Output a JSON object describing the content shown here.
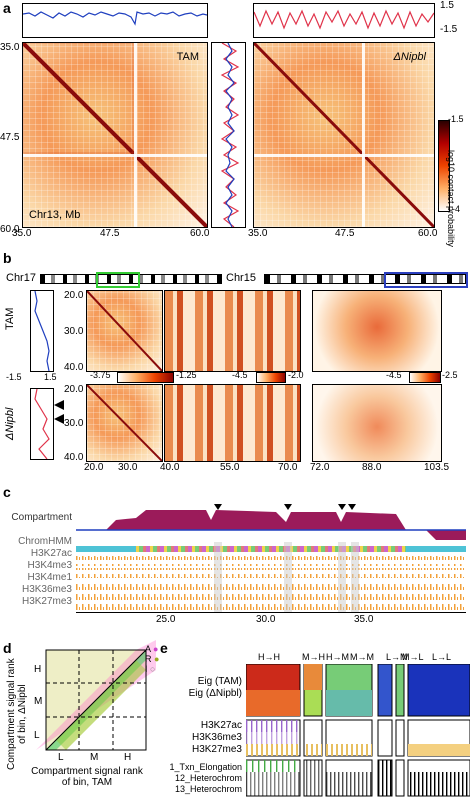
{
  "panel_a": {
    "letter": "a",
    "right_axis_ticks": [
      "1.5",
      "-1.5"
    ],
    "labels": {
      "tam": "TAM",
      "nipbl": "ΔNipbl",
      "chr": "Chr13, Mb"
    },
    "y_ticks": [
      "35.0",
      "47.5",
      "60.0"
    ],
    "x_ticks_left": [
      "35.0",
      "47.5",
      "60.0"
    ],
    "x_ticks_right": [
      "35.0",
      "47.5",
      "60.0"
    ],
    "colorbar": {
      "title": "log10 contact probability",
      "top": "-1.5",
      "bottom": "-4"
    },
    "colors": {
      "tam": "#1f3fbf",
      "nipbl": "#e0334a"
    }
  },
  "panel_b": {
    "letter": "b",
    "chr17": "Chr17",
    "chr15": "Chr15",
    "row_labels": {
      "tam": "TAM",
      "nipbl": "ΔNipbl"
    },
    "y_ticks": [
      "20.0",
      "30.0",
      "40.0"
    ],
    "y_ticks_bottom": [
      "20.0",
      "30.0",
      "40.0"
    ],
    "side_ticks": [
      "-1.5",
      "1.5"
    ],
    "x_ticks": [
      "20.0",
      "30.0",
      "40.0",
      "55.0",
      "70.0",
      "72.0",
      "88.0",
      "103.5"
    ],
    "cbar1": [
      "-3.75",
      "-1.25"
    ],
    "cbar2": [
      "-4.5",
      "-2.0"
    ],
    "cbar3": [
      "-4.5",
      "-2.5"
    ]
  },
  "panel_c": {
    "letter": "c",
    "tracks": [
      "Compartment",
      "ChromHMM",
      "H3K27ac",
      "H3K4me3",
      "H3K4me1",
      "H3K36me3",
      "H3K27me3"
    ],
    "x_ticks": [
      "25.0",
      "30.0",
      "35.0"
    ]
  },
  "panel_d": {
    "letter": "d",
    "ylabel_line1": "Compartment signal rank",
    "ylabel_line2": "of bin, ΔNipbl",
    "xlabel_line1": "Compartment signal rank",
    "xlabel_line2": "of bin, TAM",
    "axis_letters": [
      "L",
      "M",
      "H"
    ],
    "legend": [
      "A",
      "R",
      "I"
    ]
  },
  "panel_e": {
    "letter": "e",
    "columns": [
      "H→H",
      "M→H",
      "H→M",
      "M→M",
      "L→M",
      "M→L",
      "L→L"
    ],
    "row_group1": [
      "Eig (TAM)",
      "Eig (ΔNipbl)"
    ],
    "row_group2": [
      "H3K27ac",
      "H3K36me3",
      "H3K27me3"
    ],
    "row_group3": [
      "1_Txn_Elongation",
      "12_Heterochrom",
      "13_Heterochrom"
    ]
  }
}
